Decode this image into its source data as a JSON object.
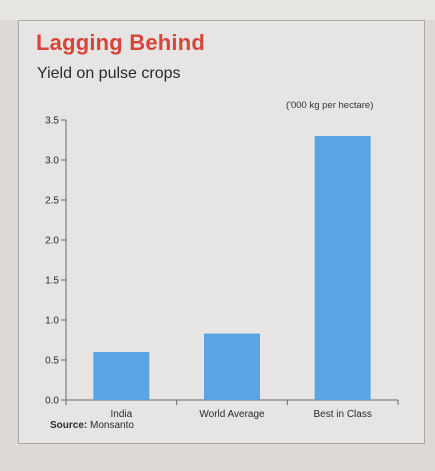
{
  "title": "Lagging Behind",
  "subtitle": "Yield on pulse crops",
  "unit_label": "('000 kg per hectare)",
  "source_label": "Source:",
  "source_value": "Monsanto",
  "colors": {
    "bar": "#5aa4e3",
    "title": "#d9443a",
    "axis": "#6b6b6b",
    "text": "#2a2a2a"
  },
  "chart_data": {
    "type": "bar",
    "title": "Lagging Behind",
    "subtitle": "Yield on pulse crops",
    "categories": [
      "India",
      "World Average",
      "Best in Class"
    ],
    "values": [
      0.6,
      0.83,
      3.3
    ],
    "ylim": [
      0,
      3.5
    ],
    "yticks": [
      0.0,
      0.5,
      1.0,
      1.5,
      2.0,
      2.5,
      3.0,
      3.5
    ],
    "ytick_labels": [
      "0.0",
      "0.5",
      "1.0",
      "1.5",
      "2.0",
      "2.5",
      "3.0",
      "3.5"
    ],
    "xlabel": "",
    "ylabel": "",
    "grid": false,
    "legend": "none"
  }
}
